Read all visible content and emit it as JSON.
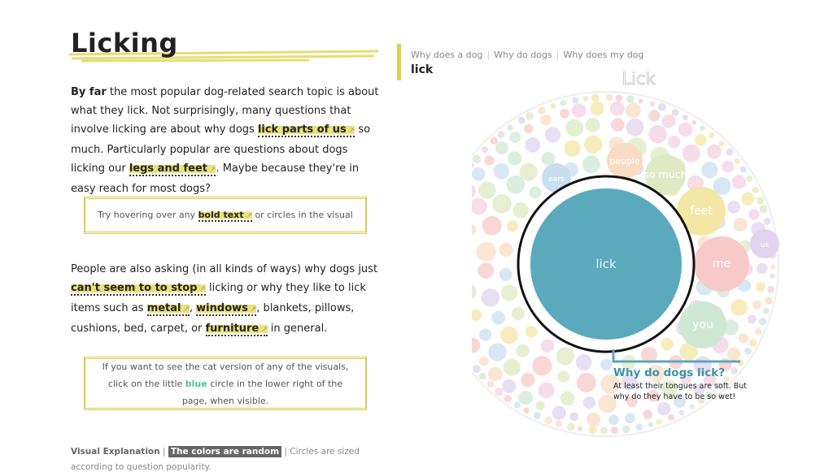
{
  "article": {
    "heading": "Licking",
    "paragraph_1": [
      "By far",
      " the most popular dog-related search topic is about what they lick. Not surprisingly, many questions that involve licking are about why dogs ",
      "lick parts of us",
      " so much. Particularly popular are questions about dogs licking our ",
      "legs and feet",
      ". Maybe because they're in easy reach for most dogs?"
    ],
    "tip_1": [
      "Try hovering over any ",
      "bold text",
      " or circles in the visual"
    ],
    "paragraph_2": [
      "People are also asking (in all kinds of ways) why dogs just ",
      "can't seem to to stop",
      " licking or why they like to lick items such as ",
      "metal",
      ", ",
      "windows",
      ", blankets, pillows, cushions, bed, carpet, or ",
      "furniture",
      " in general."
    ],
    "tip_2": [
      "If you want to see the cat version of any of the visuals, click on the little ",
      "blue",
      " circle in the lower right of the page, when visible."
    ],
    "footer": [
      "Visual Explanation",
      " | ",
      "The colors are random",
      " | Circles are sized according to question popularity."
    ]
  },
  "visual": {
    "tabs": [
      "Why does a dog",
      "Why do dogs",
      "Why does my dog"
    ],
    "selected": "lick",
    "title": "Lick",
    "center_label": "lick",
    "bubbles": [
      "people",
      "ears",
      "so much",
      "feet",
      "us",
      "me",
      "you"
    ],
    "tooltip": {
      "title": "Why do dogs lick?",
      "text": "At least their tongues are soft. But why do they have to be so wet!"
    }
  }
}
